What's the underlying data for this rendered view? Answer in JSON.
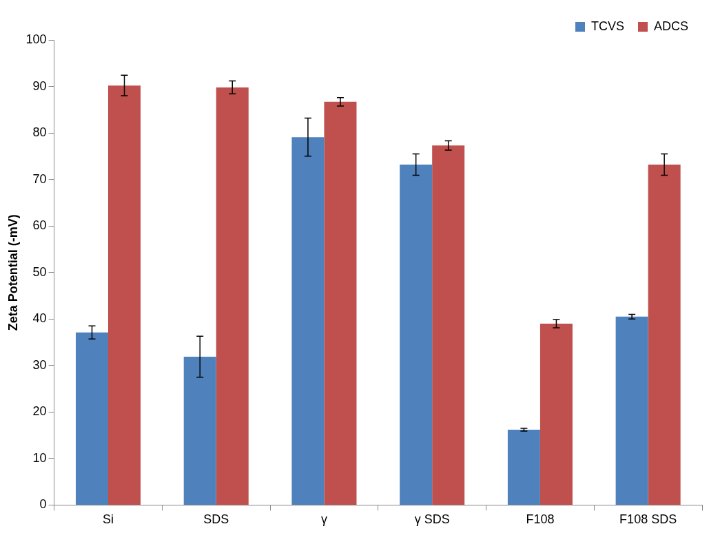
{
  "chart_data": {
    "type": "bar",
    "ylabel": "Zeta Potential (-mV)",
    "categories": [
      "Si",
      "SDS",
      "γ",
      "γ SDS",
      "F108",
      "F108 SDS"
    ],
    "series": [
      {
        "name": "TCVS",
        "color": "#4f81bd",
        "values": [
          37.1,
          31.9,
          79.1,
          73.2,
          16.2,
          40.5
        ],
        "errors": [
          1.4,
          4.4,
          4.1,
          2.3,
          0.3,
          0.5
        ]
      },
      {
        "name": "ADCS",
        "color": "#c0504d",
        "values": [
          90.2,
          89.8,
          86.7,
          77.3,
          39.0,
          73.2
        ],
        "errors": [
          2.2,
          1.4,
          0.9,
          1.0,
          0.9,
          2.3
        ]
      }
    ],
    "ylim": [
      0,
      100
    ],
    "yticks": [
      0,
      10,
      20,
      30,
      40,
      50,
      60,
      70,
      80,
      90,
      100
    ],
    "grid": false,
    "legend": "top right"
  }
}
